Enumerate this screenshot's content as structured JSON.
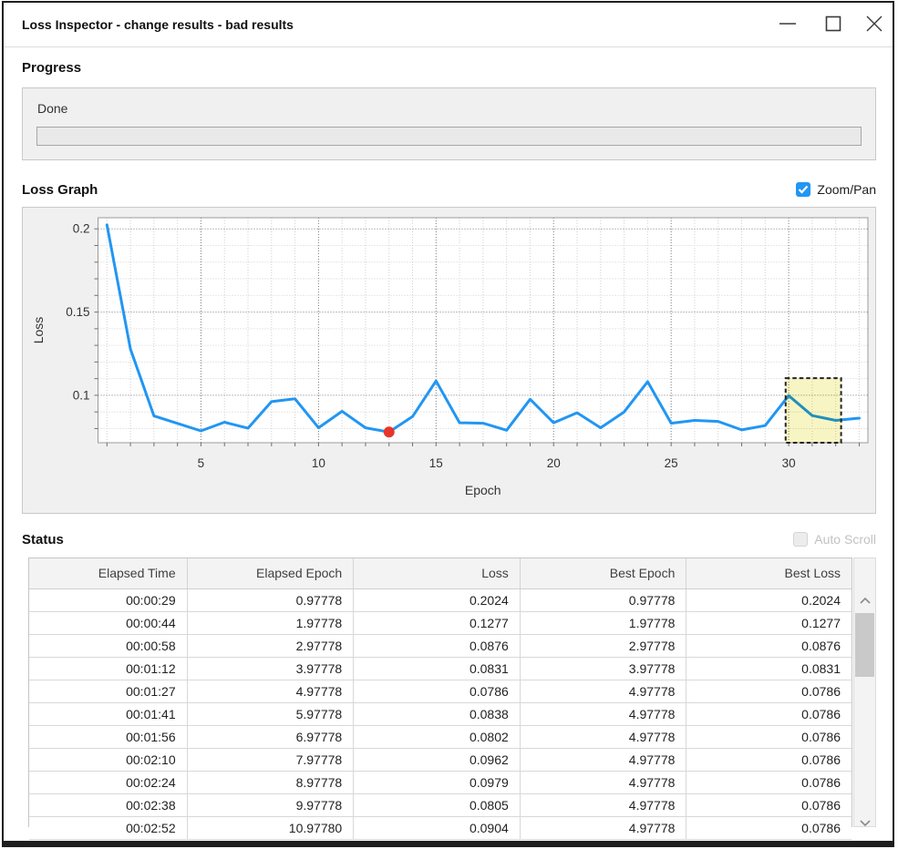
{
  "window": {
    "title": "Loss Inspector - change results - bad results",
    "controls": {
      "minimize": "minimize",
      "maximize": "maximize",
      "close": "close"
    }
  },
  "progress": {
    "heading": "Progress",
    "bar_label": "Done",
    "bar_value_percent": 0
  },
  "loss_graph": {
    "heading": "Loss Graph",
    "zoom_pan_label": "Zoom/Pan",
    "zoom_pan_checked": true
  },
  "chart_data": {
    "type": "line",
    "xlabel": "Epoch",
    "ylabel": "Loss",
    "x": [
      1,
      2,
      3,
      4,
      5,
      6,
      7,
      8,
      9,
      10,
      11,
      12,
      13,
      14,
      15,
      16,
      17,
      18,
      19,
      20,
      21,
      22,
      23,
      24,
      25,
      26,
      27,
      28,
      29,
      30,
      31,
      32,
      33
    ],
    "values": [
      0.2024,
      0.1277,
      0.0876,
      0.0831,
      0.0786,
      0.0838,
      0.0802,
      0.0962,
      0.0979,
      0.0805,
      0.0904,
      0.0805,
      0.0779,
      0.0872,
      0.1086,
      0.0835,
      0.0832,
      0.079,
      0.0976,
      0.0835,
      0.0895,
      0.0805,
      0.09,
      0.1082,
      0.0832,
      0.0849,
      0.0843,
      0.0792,
      0.0818,
      0.0998,
      0.0878,
      0.0849,
      0.0863
    ],
    "xlim": [
      0.62,
      33.37
    ],
    "ylim": [
      0.0715,
      0.2067
    ],
    "x_ticks": [
      5,
      10,
      15,
      20,
      25,
      30
    ],
    "y_ticks": [
      0.1,
      0.15,
      0.2
    ],
    "y_tick_labels": [
      "0.1",
      "0.15",
      "0.2"
    ],
    "x_minor_step": 1,
    "y_minor_step": 0.01,
    "grid": "dotted",
    "legend": false,
    "line_color": "#2196f3",
    "marker_point": {
      "x": 13,
      "y": 0.0779,
      "color": "#e8352b"
    },
    "selection_box": {
      "x1": 29.87,
      "x2": 32.23,
      "y1": 0.0715,
      "y2": 0.1103,
      "fill": "#f8f5c4",
      "border_color": "#222222",
      "style": "dashed"
    }
  },
  "status": {
    "heading": "Status",
    "auto_scroll_label": "Auto Scroll",
    "auto_scroll_enabled": false,
    "auto_scroll_checked": false
  },
  "table": {
    "columns": [
      "Elapsed Time",
      "Elapsed Epoch",
      "Loss",
      "Best Epoch",
      "Best Loss"
    ],
    "rows": [
      [
        "00:00:29",
        "0.97778",
        "0.2024",
        "0.97778",
        "0.2024"
      ],
      [
        "00:00:44",
        "1.97778",
        "0.1277",
        "1.97778",
        "0.1277"
      ],
      [
        "00:00:58",
        "2.97778",
        "0.0876",
        "2.97778",
        "0.0876"
      ],
      [
        "00:01:12",
        "3.97778",
        "0.0831",
        "3.97778",
        "0.0831"
      ],
      [
        "00:01:27",
        "4.97778",
        "0.0786",
        "4.97778",
        "0.0786"
      ],
      [
        "00:01:41",
        "5.97778",
        "0.0838",
        "4.97778",
        "0.0786"
      ],
      [
        "00:01:56",
        "6.97778",
        "0.0802",
        "4.97778",
        "0.0786"
      ],
      [
        "00:02:10",
        "7.97778",
        "0.0962",
        "4.97778",
        "0.0786"
      ],
      [
        "00:02:24",
        "8.97778",
        "0.0979",
        "4.97778",
        "0.0786"
      ],
      [
        "00:02:38",
        "9.97778",
        "0.0805",
        "4.97778",
        "0.0786"
      ],
      [
        "00:02:52",
        "10.97780",
        "0.0904",
        "4.97778",
        "0.0786"
      ]
    ]
  }
}
